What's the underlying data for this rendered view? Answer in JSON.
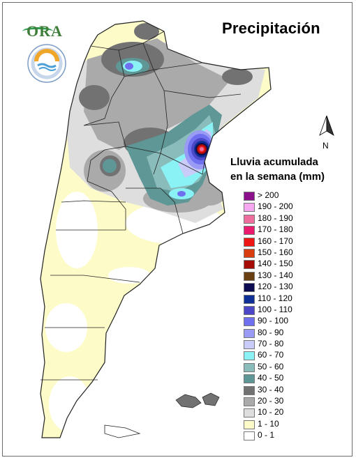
{
  "title": "Precipitación",
  "logos": {
    "ora_text": "ORA"
  },
  "north_label": "N",
  "legend": {
    "title_line1": "Lluvia acumulada",
    "title_line2": "en la semana (mm)",
    "items": [
      {
        "label": "> 200",
        "color": "#8b0e8b"
      },
      {
        "label": "190 - 200",
        "color": "#f7a6f0"
      },
      {
        "label": "180 - 190",
        "color": "#ee6e9d"
      },
      {
        "label": "170 - 180",
        "color": "#ea1a6e"
      },
      {
        "label": "160 - 170",
        "color": "#ee1515"
      },
      {
        "label": "150 - 160",
        "color": "#d83d10"
      },
      {
        "label": "140 - 150",
        "color": "#a30d05"
      },
      {
        "label": "130 - 140",
        "color": "#6a3f11"
      },
      {
        "label": "120 - 130",
        "color": "#0b0b52"
      },
      {
        "label": "110 - 120",
        "color": "#0e2f96"
      },
      {
        "label": "100 - 110",
        "color": "#4b47c7"
      },
      {
        "label": "90 - 100",
        "color": "#6f70f0"
      },
      {
        "label": "80 - 90",
        "color": "#9a9bf4"
      },
      {
        "label": "70 - 80",
        "color": "#c9cbf8"
      },
      {
        "label": "60 - 70",
        "color": "#8af1f5"
      },
      {
        "label": "50 - 60",
        "color": "#89bcbb"
      },
      {
        "label": "40 - 50",
        "color": "#5e9796"
      },
      {
        "label": "30 - 40",
        "color": "#727272"
      },
      {
        "label": "20 - 30",
        "color": "#aaaaaa"
      },
      {
        "label": "10 - 20",
        "color": "#dedede"
      },
      {
        "label": "1 - 10",
        "color": "#fdfbc8"
      },
      {
        "label": "0 - 1",
        "color": "#ffffff"
      }
    ]
  }
}
